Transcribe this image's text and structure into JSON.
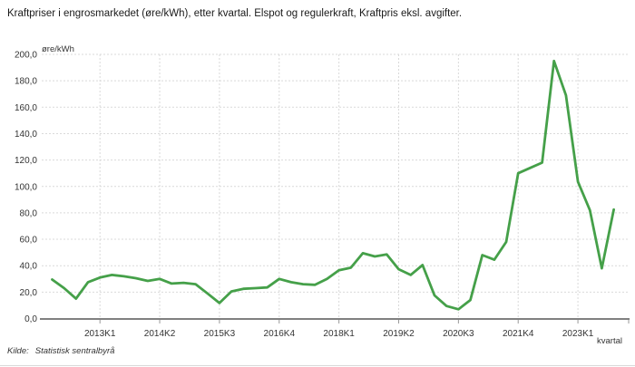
{
  "header": {
    "title": "Kraftpriser i engrosmarkedet (øre/kWh), etter kvartal. Elspot og regulerkraft, Kraftpris eksl. avgifter."
  },
  "footer": {
    "source_label": "Kilde:",
    "source_text": "Statistisk sentralbyrå"
  },
  "chart_data": {
    "type": "line",
    "title": "Kraftpriser i engrosmarkedet (øre/kWh), etter kvartal. Elspot og regulerkraft, Kraftpris eksl. avgifter.",
    "ylabel": "øre/kWh",
    "xlabel": "kvartal",
    "ylim": [
      0,
      200
    ],
    "ytick_step": 20,
    "grid": true,
    "legend": "none",
    "line_color": "#45a049",
    "grid_color": "#d9d9d9",
    "axis_color": "#808080",
    "y_tick_labels": [
      "0,0",
      "20,0",
      "40,0",
      "60,0",
      "80,0",
      "100,0",
      "120,0",
      "140,0",
      "160,0",
      "180,0",
      "200,0"
    ],
    "x_tick_indices": [
      4,
      9,
      14,
      19,
      24,
      29,
      34,
      39,
      44
    ],
    "x_tick_labels": [
      "2013K1",
      "2014K2",
      "2015K3",
      "2016K4",
      "2018K1",
      "2019K2",
      "2020K3",
      "2021K4",
      "2023K1"
    ],
    "categories": [
      "2012K1",
      "2012K2",
      "2012K3",
      "2012K4",
      "2013K1",
      "2013K2",
      "2013K3",
      "2013K4",
      "2014K1",
      "2014K2",
      "2014K3",
      "2014K4",
      "2015K1",
      "2015K2",
      "2015K3",
      "2015K4",
      "2016K1",
      "2016K2",
      "2016K3",
      "2016K4",
      "2017K1",
      "2017K2",
      "2017K3",
      "2017K4",
      "2018K1",
      "2018K2",
      "2018K3",
      "2018K4",
      "2019K1",
      "2019K2",
      "2019K3",
      "2019K4",
      "2020K1",
      "2020K2",
      "2020K3",
      "2020K4",
      "2021K1",
      "2021K2",
      "2021K3",
      "2021K4",
      "2022K1",
      "2022K2",
      "2022K3",
      "2022K4",
      "2023K1",
      "2023K2",
      "2023K3",
      "2023K4"
    ],
    "values": [
      29.5,
      23.0,
      15.0,
      27.5,
      31.0,
      33.0,
      32.0,
      30.5,
      28.5,
      30.0,
      26.5,
      27.0,
      26.0,
      19.0,
      11.7,
      20.5,
      22.5,
      23.0,
      23.5,
      30.0,
      27.5,
      26.0,
      25.5,
      30.0,
      36.5,
      38.5,
      49.5,
      47.0,
      48.5,
      37.3,
      33.0,
      40.5,
      17.5,
      9.5,
      7.0,
      14.0,
      48.0,
      44.5,
      58.0,
      110.0,
      114.0,
      118.0,
      195.0,
      169.0,
      103.5,
      82.0,
      38.0,
      82.5
    ]
  }
}
